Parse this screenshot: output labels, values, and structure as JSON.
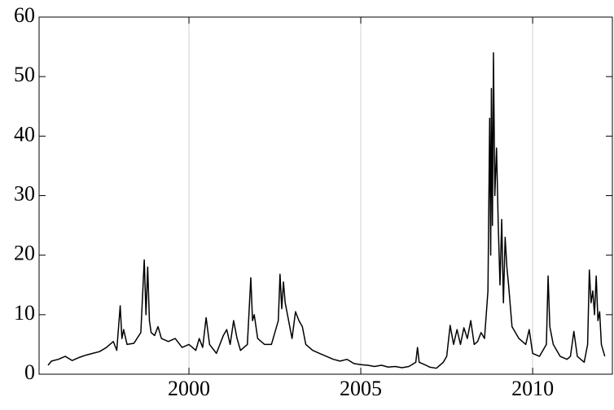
{
  "chart_data": {
    "type": "line",
    "x": [
      1995.9,
      1996.0,
      1996.2,
      1996.4,
      1996.6,
      1996.8,
      1997.0,
      1997.2,
      1997.4,
      1997.6,
      1997.8,
      1997.9,
      1998.0,
      1998.05,
      1998.1,
      1998.2,
      1998.4,
      1998.6,
      1998.7,
      1998.75,
      1998.8,
      1998.85,
      1998.9,
      1999.0,
      1999.1,
      1999.2,
      1999.4,
      1999.6,
      1999.8,
      2000.0,
      2000.2,
      2000.3,
      2000.4,
      2000.5,
      2000.6,
      2000.8,
      2001.0,
      2001.1,
      2001.2,
      2001.3,
      2001.4,
      2001.5,
      2001.7,
      2001.8,
      2001.85,
      2001.9,
      2002.0,
      2002.2,
      2002.4,
      2002.6,
      2002.65,
      2002.7,
      2002.75,
      2002.8,
      2002.9,
      2003.0,
      2003.1,
      2003.2,
      2003.3,
      2003.4,
      2003.6,
      2003.8,
      2004.0,
      2004.2,
      2004.4,
      2004.6,
      2004.8,
      2005.0,
      2005.2,
      2005.4,
      2005.6,
      2005.8,
      2006.0,
      2006.2,
      2006.4,
      2006.6,
      2006.65,
      2006.7,
      2006.9,
      2007.0,
      2007.2,
      2007.4,
      2007.5,
      2007.6,
      2007.7,
      2007.8,
      2007.9,
      2008.0,
      2008.1,
      2008.2,
      2008.3,
      2008.4,
      2008.5,
      2008.6,
      2008.7,
      2008.75,
      2008.78,
      2008.8,
      2008.83,
      2008.86,
      2008.9,
      2008.95,
      2009.0,
      2009.05,
      2009.1,
      2009.15,
      2009.2,
      2009.25,
      2009.3,
      2009.4,
      2009.6,
      2009.8,
      2009.9,
      2010.0,
      2010.2,
      2010.4,
      2010.45,
      2010.5,
      2010.6,
      2010.8,
      2011.0,
      2011.1,
      2011.2,
      2011.3,
      2011.5,
      2011.6,
      2011.65,
      2011.7,
      2011.75,
      2011.8,
      2011.85,
      2011.9,
      2011.95,
      2012.0,
      2012.1
    ],
    "values": [
      1.5,
      2.2,
      2.5,
      3.0,
      2.3,
      2.8,
      3.2,
      3.5,
      3.8,
      4.5,
      5.5,
      4.0,
      11.5,
      6,
      7.5,
      5,
      5.2,
      7,
      19.2,
      10,
      18,
      9,
      7,
      6.5,
      8,
      6,
      5.5,
      6,
      4.5,
      5,
      4,
      6,
      4.5,
      9.5,
      5,
      3.5,
      6.5,
      7.5,
      5,
      9,
      6,
      4,
      5,
      16.2,
      9,
      10,
      6,
      5,
      5,
      9,
      16.8,
      11,
      15.5,
      12,
      9,
      6,
      10.5,
      9,
      8,
      5,
      4,
      3.5,
      3,
      2.5,
      2.2,
      2.5,
      1.8,
      1.6,
      1.5,
      1.3,
      1.5,
      1.2,
      1.3,
      1.1,
      1.3,
      2,
      4.5,
      2,
      1.5,
      1.2,
      1,
      2,
      3,
      8.2,
      5,
      7.5,
      5,
      7.8,
      6,
      9,
      5,
      5.5,
      7,
      6,
      14,
      43,
      20,
      48,
      25,
      54,
      30,
      38,
      25,
      15,
      26,
      12,
      23,
      18,
      15,
      8,
      6,
      5,
      7.5,
      3.5,
      3,
      5,
      16.5,
      8,
      5,
      3,
      2.5,
      3,
      7.2,
      3,
      2,
      5,
      17.5,
      12,
      14,
      10,
      16.5,
      9,
      10.5,
      5,
      3
    ],
    "color": "#000000",
    "xlim": [
      1995.64,
      2012.32
    ],
    "ylim": [
      0,
      60
    ],
    "xticks": [
      2000,
      2005,
      2010
    ],
    "yticks": [
      0,
      10,
      20,
      30,
      40,
      50,
      60
    ],
    "grid": "x"
  }
}
